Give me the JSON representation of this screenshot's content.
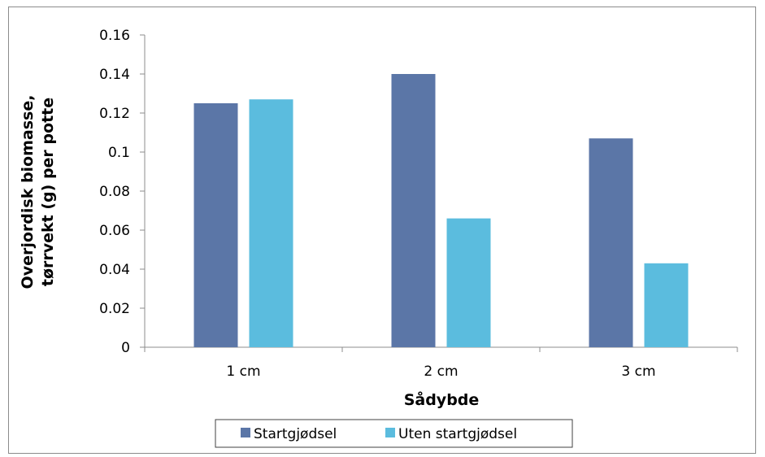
{
  "chart_data": {
    "type": "bar",
    "categories": [
      "1 cm",
      "2 cm",
      "3 cm"
    ],
    "series": [
      {
        "name": "Startgjødsel",
        "values": [
          0.125,
          0.14,
          0.107
        ],
        "color": "#5b76a7"
      },
      {
        "name": "Uten startgjødsel",
        "values": [
          0.127,
          0.066,
          0.043
        ],
        "color": "#5bbcde"
      }
    ],
    "xlabel": "Sådybde",
    "ylabel_lines": [
      "Overjordisk biomasse,",
      "tørrvekt (g) per potte"
    ],
    "ylim": [
      0,
      0.16
    ],
    "yticks": [
      "0",
      "0.02",
      "0.04",
      "0.06",
      "0.08",
      "0.1",
      "0.12",
      "0.14",
      "0.16"
    ],
    "grid": false,
    "legend_position": "bottom"
  }
}
